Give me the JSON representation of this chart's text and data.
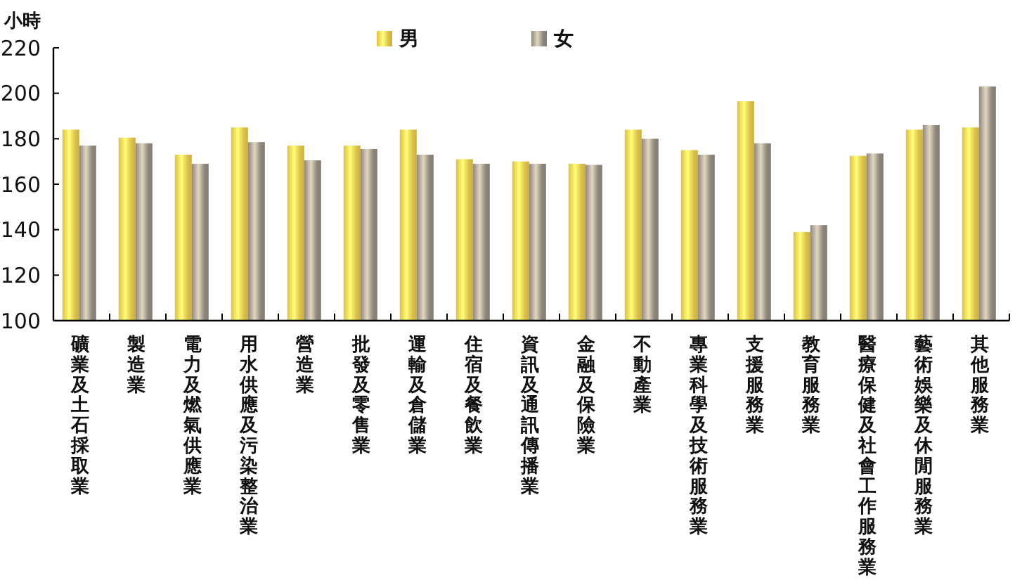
{
  "chart_data": {
    "type": "bar",
    "ylabel": "小時",
    "categories": [
      "礦業及土石採取業",
      "製造業",
      "電力及燃氣供應業",
      "用水供應及污染整治業",
      "營造業",
      "批發及零售業",
      "運輸及倉儲業",
      "住宿及餐飲業",
      "資訊及通訊傳播業",
      "金融及保險業",
      "不動產業",
      "專業科學及技術服務業",
      "支援服務業",
      "教育服務業",
      "醫療保健及社會工作服務業",
      "藝術娛樂及休閒服務業",
      "其他服務業"
    ],
    "series": [
      {
        "name": "男",
        "color": "#dcc04a",
        "values": [
          184,
          180.5,
          173,
          185,
          177,
          177,
          184,
          171,
          170,
          169,
          184,
          175,
          196.5,
          139,
          172.5,
          184,
          185
        ]
      },
      {
        "name": "女",
        "color": "#8e877b",
        "values": [
          177,
          178,
          169,
          178.5,
          170.5,
          175.5,
          173,
          169,
          169,
          168.5,
          180,
          173,
          178,
          142,
          173.5,
          186,
          203
        ]
      }
    ],
    "ylim": [
      100,
      220
    ],
    "yticks": [
      100,
      120,
      140,
      160,
      180,
      200,
      220
    ],
    "legend": "top"
  }
}
